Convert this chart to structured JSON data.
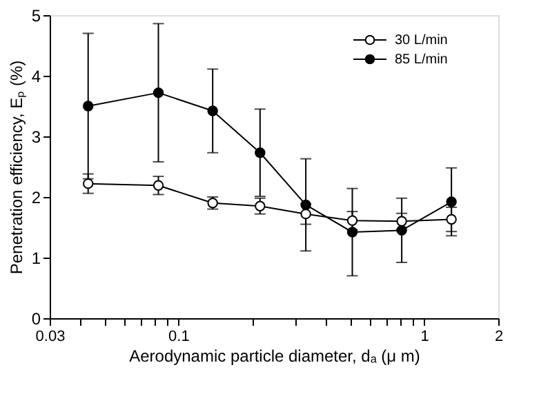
{
  "chart_data": {
    "type": "line",
    "xlabel": "Aerodynamic particle diameter, dₐ (μ m)",
    "ylabel": "Penetration efficiency, Eₚ (%)",
    "x": [
      0.043,
      0.083,
      0.138,
      0.215,
      0.33,
      0.51,
      0.81,
      1.29
    ],
    "series": [
      {
        "name": "30 L/min",
        "color": "#000000",
        "values": [
          2.22,
          2.19,
          1.9,
          1.85,
          1.72,
          1.61,
          1.6,
          1.63
        ],
        "errors": [
          0.16,
          0.15,
          0.1,
          0.13,
          0.17,
          0.15,
          0.13,
          0.2
        ]
      },
      {
        "name": "85 L/min",
        "color": "#000000",
        "values": [
          3.5,
          3.72,
          3.42,
          2.73,
          1.87,
          1.42,
          1.45,
          1.92
        ],
        "errors": [
          1.2,
          1.14,
          0.69,
          0.72,
          0.76,
          0.72,
          0.53,
          0.56
        ]
      }
    ],
    "log": "x",
    "xlim": [
      0.03,
      2
    ],
    "ylim": [
      0,
      5
    ],
    "xticks": [
      0.03,
      {
        "value": 0.04,
        "label": null
      },
      {
        "value": 0.05,
        "label": null
      },
      {
        "value": 0.06,
        "label": null
      },
      {
        "value": 0.07,
        "label": null
      },
      {
        "value": 0.08,
        "label": null
      },
      {
        "value": 0.09,
        "label": null
      },
      0.1,
      {
        "value": 0.2,
        "label": null
      },
      {
        "value": 0.3,
        "label": null
      },
      {
        "value": 0.4,
        "label": null
      },
      {
        "value": 0.5,
        "label": null
      },
      {
        "value": 0.6,
        "label": null
      },
      {
        "value": 0.7,
        "label": null
      },
      {
        "value": 0.8,
        "label": null
      },
      {
        "value": 0.9,
        "label": null
      },
      1,
      2
    ],
    "yticks": [
      0,
      1,
      2,
      3,
      4,
      5
    ],
    "grid": false,
    "legend": "top right",
    "marker": "circle",
    "line_style": "solid"
  }
}
